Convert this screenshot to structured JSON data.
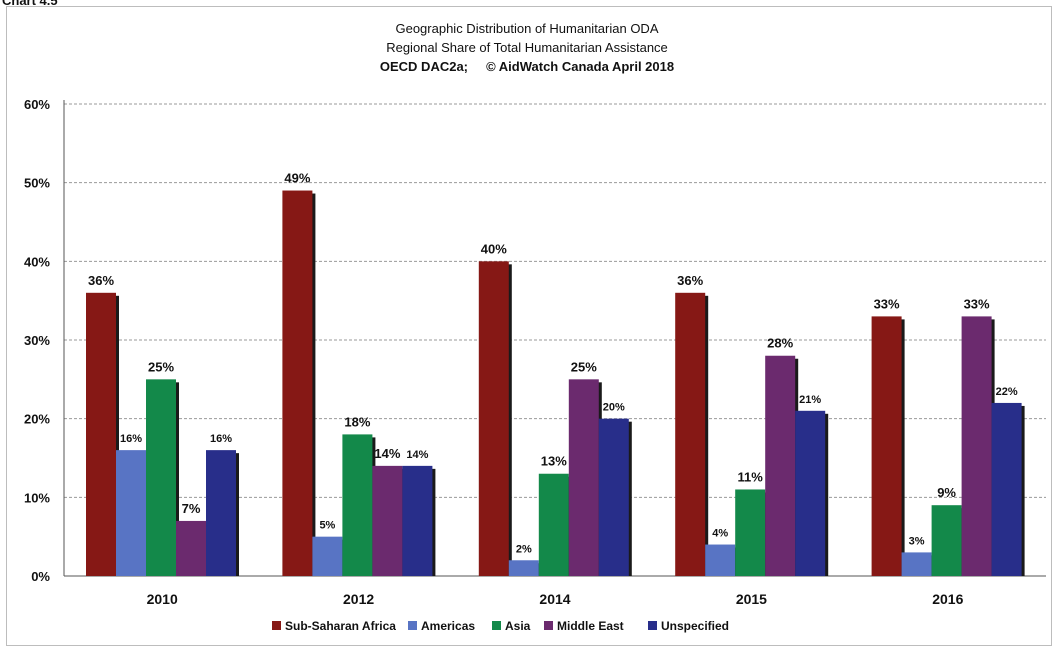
{
  "page_header": "Chart 4.5",
  "chart_data": {
    "type": "bar",
    "title": "Geographic Distribution of Humanitarian ODA",
    "subtitle": "Regional Share of Total Humanitarian Assistance",
    "source_left": "OECD DAC2a;",
    "source_right": "© AidWatch Canada April 2018",
    "categories": [
      "2010",
      "2012",
      "2014",
      "2015",
      "2016"
    ],
    "series": [
      {
        "name": "Sub-Saharan Africa",
        "color": "#861815",
        "values": [
          36,
          49,
          40,
          36,
          33
        ],
        "labels": [
          "36%",
          "49%",
          "40%",
          "36%",
          "33%"
        ]
      },
      {
        "name": "Americas",
        "color": "#5874c4",
        "values": [
          16,
          5,
          2,
          4,
          3
        ],
        "labels": [
          "16%",
          "5%",
          "2%",
          "4%",
          "3%"
        ]
      },
      {
        "name": "Asia",
        "color": "#13894a",
        "values": [
          25,
          18,
          13,
          11,
          9
        ],
        "labels": [
          "25%",
          "18%",
          "13%",
          "11%",
          "9%"
        ]
      },
      {
        "name": "Middle East",
        "color": "#6b2a6e",
        "values": [
          7,
          14,
          25,
          28,
          33
        ],
        "labels": [
          "7%",
          "14%",
          "25%",
          "28%",
          "33%"
        ]
      },
      {
        "name": "Unspecified",
        "color": "#282e8a",
        "values": [
          16,
          14,
          20,
          21,
          22
        ],
        "labels": [
          "16%",
          "14%",
          "20%",
          "21%",
          "22%"
        ]
      }
    ],
    "ylim": [
      0,
      60
    ],
    "yticks": [
      "0%",
      "10%",
      "20%",
      "30%",
      "40%",
      "50%",
      "60%"
    ],
    "grid": true,
    "legend_position": "bottom"
  }
}
